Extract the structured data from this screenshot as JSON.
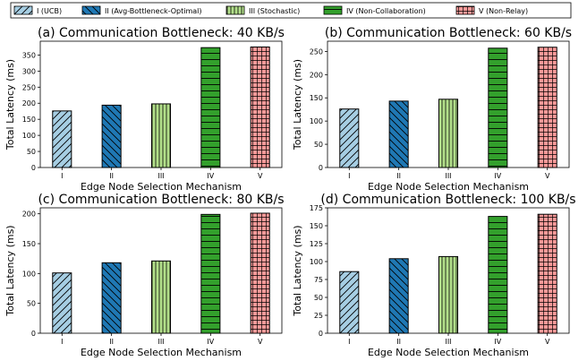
{
  "legend": {
    "entries": [
      "I (UCB)",
      "II (Avg-Bottleneck-Optimal)",
      "III (Stochastic)",
      "IV (Non-Collaboration)",
      "V (Non-Relay)"
    ],
    "placement": "top-center"
  },
  "colors": {
    "series": [
      "#a6cee3",
      "#1f78b4",
      "#b2df8a",
      "#33a02c",
      "#fb9a99"
    ]
  },
  "chart_data": [
    {
      "type": "bar",
      "title": "(a) Communication Bottleneck: 40 KB/s",
      "xlabel": "Edge Node Selection Mechanism",
      "ylabel": "Total Latency (ms)",
      "categories": [
        "I",
        "II",
        "III",
        "IV",
        "V"
      ],
      "values": [
        176,
        194,
        198,
        373,
        375
      ],
      "ylim": [
        0,
        393
      ],
      "yticks": [
        0,
        50,
        100,
        150,
        200,
        250,
        300,
        350
      ],
      "grid": false
    },
    {
      "type": "bar",
      "title": "(b) Communication Bottleneck: 60 KB/s",
      "xlabel": "Edge Node Selection Mechanism",
      "ylabel": "Total Latency (ms)",
      "categories": [
        "I",
        "II",
        "III",
        "IV",
        "V"
      ],
      "values": [
        126,
        143,
        147,
        257,
        259
      ],
      "ylim": [
        0,
        272
      ],
      "yticks": [
        0,
        50,
        100,
        150,
        200,
        250
      ],
      "grid": false
    },
    {
      "type": "bar",
      "title": "(c) Communication Bottleneck: 80 KB/s",
      "xlabel": "Edge Node Selection Mechanism",
      "ylabel": "Total Latency (ms)",
      "categories": [
        "I",
        "II",
        "III",
        "IV",
        "V"
      ],
      "values": [
        101,
        118,
        121,
        199,
        201
      ],
      "ylim": [
        0,
        210
      ],
      "yticks": [
        0,
        50,
        100,
        150,
        200
      ],
      "grid": false
    },
    {
      "type": "bar",
      "title": "(d) Communication Bottleneck: 100 KB/s",
      "xlabel": "Edge Node Selection Mechanism",
      "ylabel": "Total Latency (ms)",
      "categories": [
        "I",
        "II",
        "III",
        "IV",
        "V"
      ],
      "values": [
        86,
        104,
        107,
        163,
        166
      ],
      "ylim": [
        0,
        175
      ],
      "yticks": [
        0,
        25,
        50,
        75,
        100,
        125,
        150,
        175
      ],
      "grid": false
    }
  ]
}
